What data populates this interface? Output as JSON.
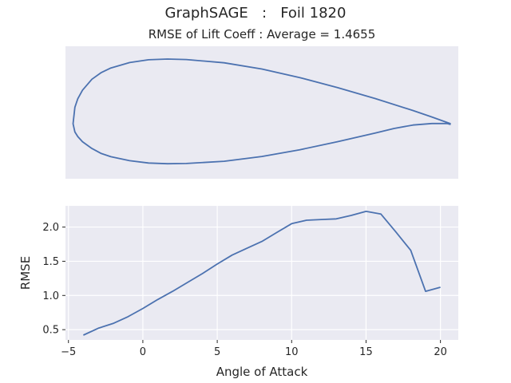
{
  "figure": {
    "suptitle": "GraphSAGE   :   Foil 1820"
  },
  "colors": {
    "axes_background": "#eaeaf2",
    "grid": "#ffffff",
    "line": "#4c72b0",
    "text": "#262626"
  },
  "chart_data": [
    {
      "type": "line",
      "title": "RMSE of Lift Coeff : Average = 1.4655",
      "xlabel": "",
      "ylabel": "",
      "grid": false,
      "axis_ticks": false,
      "xlim": [
        -0.02,
        1.02
      ],
      "ylim": [
        -0.11,
        0.155
      ],
      "series": [
        {
          "values": [
            [
              1.0,
              0.0
            ],
            [
              0.95,
              0.0135
            ],
            [
              0.9,
              0.0265
            ],
            [
              0.8,
              0.0505
            ],
            [
              0.7,
              0.0725
            ],
            [
              0.6,
              0.0925
            ],
            [
              0.5,
              0.1095
            ],
            [
              0.4,
              0.122
            ],
            [
              0.3,
              0.1285
            ],
            [
              0.25,
              0.1295
            ],
            [
              0.2,
              0.128
            ],
            [
              0.15,
              0.1225
            ],
            [
              0.1,
              0.1115
            ],
            [
              0.075,
              0.1025
            ],
            [
              0.05,
              0.089
            ],
            [
              0.025,
              0.067
            ],
            [
              0.0125,
              0.05
            ],
            [
              0.005,
              0.033
            ],
            [
              0.0,
              0.0
            ],
            [
              0.005,
              -0.0165
            ],
            [
              0.0125,
              -0.0255
            ],
            [
              0.025,
              -0.036
            ],
            [
              0.05,
              -0.0495
            ],
            [
              0.075,
              -0.0595
            ],
            [
              0.1,
              -0.066
            ],
            [
              0.15,
              -0.074
            ],
            [
              0.2,
              -0.0785
            ],
            [
              0.25,
              -0.08
            ],
            [
              0.3,
              -0.0795
            ],
            [
              0.4,
              -0.075
            ],
            [
              0.5,
              -0.0655
            ],
            [
              0.6,
              -0.052
            ],
            [
              0.7,
              -0.036
            ],
            [
              0.8,
              -0.0185
            ],
            [
              0.85,
              -0.0095
            ],
            [
              0.9,
              -0.0025
            ],
            [
              0.95,
              0.0005
            ],
            [
              0.99,
              0.0005
            ],
            [
              1.0,
              -0.0015
            ]
          ]
        }
      ]
    },
    {
      "type": "line",
      "title": "",
      "xlabel": "Angle of Attack",
      "ylabel": "RMSE",
      "grid": true,
      "xlim": [
        -5.2,
        21.2
      ],
      "ylim": [
        0.35,
        2.31
      ],
      "xticks": [
        -5,
        0,
        5,
        10,
        15,
        20
      ],
      "yticks": [
        0.5,
        1.0,
        1.5,
        2.0
      ],
      "xtick_labels": [
        "−5",
        "0",
        "5",
        "10",
        "15",
        "20"
      ],
      "ytick_labels": [
        "0.5",
        "1.0",
        "1.5",
        "2.0"
      ],
      "series": [
        {
          "x": [
            -4,
            -3,
            -2,
            -1,
            0,
            1,
            2,
            3,
            4,
            5,
            6,
            7,
            8,
            9,
            10,
            11,
            12,
            13,
            14,
            15,
            16,
            17,
            18,
            19,
            20
          ],
          "y": [
            0.42,
            0.52,
            0.59,
            0.69,
            0.81,
            0.94,
            1.06,
            1.19,
            1.32,
            1.46,
            1.59,
            1.69,
            1.79,
            1.92,
            2.05,
            2.1,
            2.11,
            2.12,
            2.17,
            2.23,
            2.19,
            1.93,
            1.66,
            1.06,
            1.12
          ]
        }
      ]
    }
  ]
}
